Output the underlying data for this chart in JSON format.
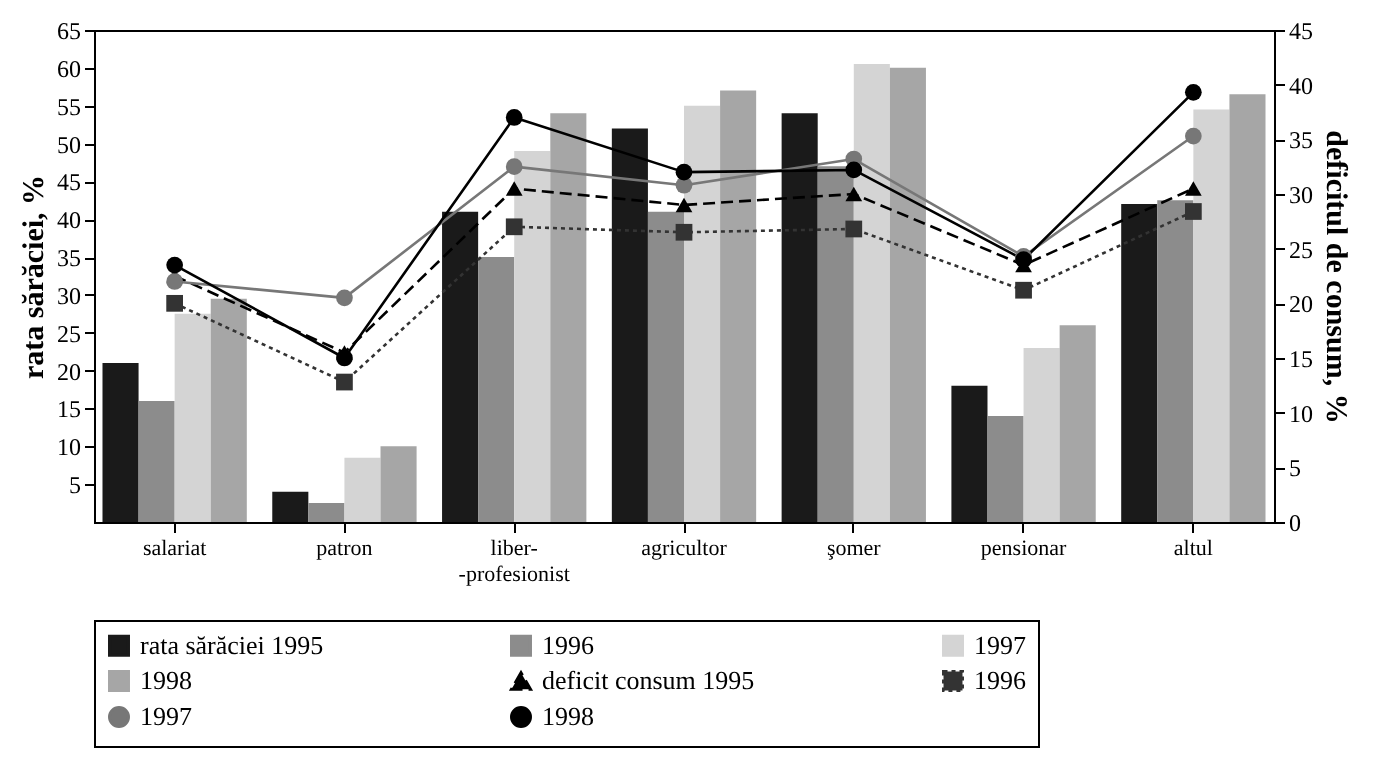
{
  "chart_data": {
    "type": "bar",
    "ylabel": "rata sărăciei, %",
    "y2label": "deficitul de consum, %",
    "categories": [
      "salariat",
      "patron",
      "liber-\n-profesionist",
      "agricultor",
      "şomer",
      "pensionar",
      "altul"
    ],
    "ylim": [
      0,
      65
    ],
    "yticks": [
      5,
      10,
      15,
      20,
      25,
      30,
      35,
      40,
      45,
      50,
      55,
      60,
      65
    ],
    "y2lim": [
      0,
      45
    ],
    "y2ticks": [
      0,
      5,
      10,
      15,
      20,
      25,
      30,
      35,
      40,
      45
    ],
    "grid": false,
    "legend": "bottom",
    "series": [
      {
        "name": "rata sărăciei 1995",
        "color": "#1a1a1a",
        "values": [
          21,
          4,
          41,
          52,
          54,
          18,
          42
        ]
      },
      {
        "name": "1996",
        "color": "#8c8c8c",
        "values": [
          16,
          2.5,
          35,
          41,
          47,
          14,
          42.5
        ]
      },
      {
        "name": "1997",
        "color": "#d4d4d4",
        "values": [
          27.5,
          8.5,
          49,
          55,
          60.5,
          23,
          54.5
        ]
      },
      {
        "name": "1998",
        "color": "#a6a6a6",
        "values": [
          29.5,
          10,
          54,
          57,
          60,
          26,
          56.5
        ]
      },
      {
        "name": "deficit consum 1995",
        "type": "line",
        "axis": "y2",
        "color": "#000000",
        "marker": "triangle",
        "line_style": "dashed",
        "values": [
          22.5,
          15.5,
          30.5,
          29,
          30,
          23.5,
          30.5
        ]
      },
      {
        "name": "1996",
        "type": "line",
        "axis": "y2",
        "color": "#333333",
        "marker": "square",
        "line_style": "dotted",
        "values": [
          20,
          12.8,
          27,
          26.5,
          26.8,
          21.2,
          28.4
        ]
      },
      {
        "name": "1997",
        "type": "line",
        "axis": "y2",
        "color": "#777777",
        "marker": "circle",
        "line_style": "solid",
        "values": [
          22,
          20.5,
          32.5,
          30.8,
          33.2,
          24.3,
          35.3
        ]
      },
      {
        "name": "1998",
        "type": "line",
        "axis": "y2",
        "color": "#000000",
        "marker": "circle",
        "line_style": "solid",
        "values": [
          23.5,
          15,
          37,
          32,
          32.2,
          24,
          39.3
        ]
      }
    ]
  }
}
